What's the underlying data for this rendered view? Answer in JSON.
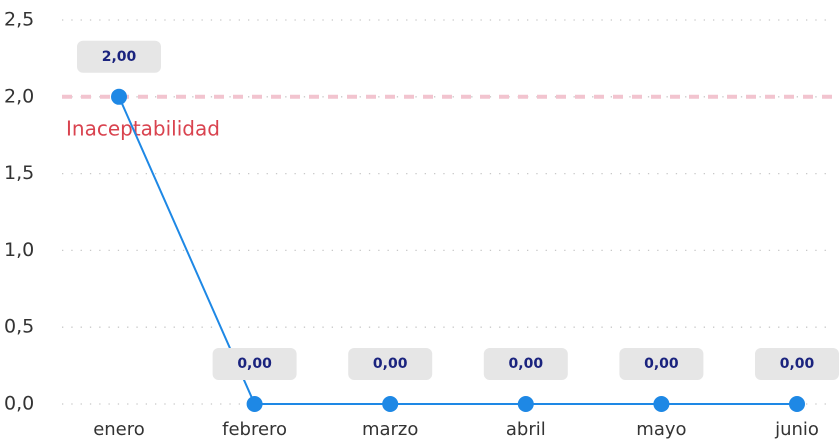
{
  "chart_data": {
    "type": "line",
    "categories": [
      "enero",
      "febrero",
      "marzo",
      "abril",
      "mayo",
      "junio"
    ],
    "series": [
      {
        "name": null,
        "color": "#1e88e5",
        "values": [
          2,
          0,
          0,
          0,
          0,
          0
        ],
        "value_labels": [
          "2,00",
          "0,00",
          "0,00",
          "0,00",
          "0,00",
          "0,00"
        ]
      }
    ],
    "ylim": [
      0,
      2.5
    ],
    "yticks": [
      {
        "value": 0,
        "label": "0,0"
      },
      {
        "value": 0.5,
        "label": "0,5"
      },
      {
        "value": 1,
        "label": "1,0"
      },
      {
        "value": 1.5,
        "label": "1,5"
      },
      {
        "value": 2,
        "label": "2,0"
      },
      {
        "value": 2.5,
        "label": "2,5"
      }
    ],
    "grid": true,
    "reference_line": {
      "value": 2,
      "label": "Inaceptabilidad",
      "color": "#f2c4cf"
    }
  }
}
